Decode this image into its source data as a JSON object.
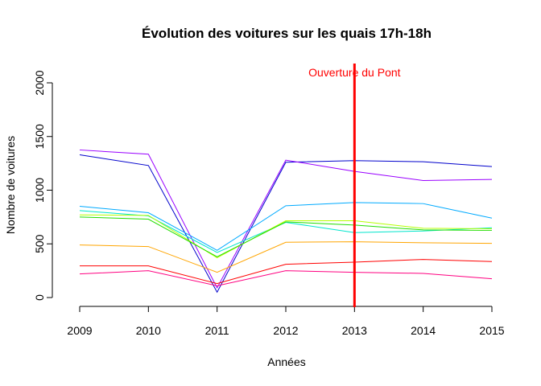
{
  "chart_data": {
    "type": "line",
    "title": "Évolution des voitures sur les quais 17h-18h",
    "xlabel": "Années",
    "ylabel": "Nombre de voitures",
    "x": [
      2009,
      2010,
      2011,
      2012,
      2013,
      2014,
      2015
    ],
    "x_ticks": [
      "2009",
      "2010",
      "2011",
      "2012",
      "2013",
      "2014",
      "2015"
    ],
    "y_ticks": [
      "0",
      "500",
      "1000",
      "1500",
      "2000"
    ],
    "xlim": [
      2009,
      2015
    ],
    "ylim": [
      0,
      2000
    ],
    "grid": false,
    "legend": false,
    "series": [
      {
        "color": "#0000cc",
        "values": [
          1330,
          1230,
          50,
          1260,
          1275,
          1265,
          1220
        ]
      },
      {
        "color": "#9900ff",
        "values": [
          1375,
          1335,
          90,
          1280,
          1175,
          1090,
          1100
        ]
      },
      {
        "color": "#00aaff",
        "values": [
          850,
          790,
          440,
          855,
          885,
          875,
          740
        ]
      },
      {
        "color": "#00e5cc",
        "values": [
          810,
          760,
          420,
          700,
          605,
          620,
          650
        ]
      },
      {
        "color": "#b3ff00",
        "values": [
          770,
          765,
          370,
          715,
          715,
          645,
          640
        ]
      },
      {
        "color": "#22dd00",
        "values": [
          750,
          730,
          380,
          705,
          675,
          630,
          625
        ]
      },
      {
        "color": "#ffa500",
        "values": [
          490,
          475,
          235,
          515,
          520,
          510,
          505
        ]
      },
      {
        "color": "#ff0000",
        "values": [
          295,
          295,
          130,
          310,
          330,
          355,
          335
        ]
      },
      {
        "color": "#ff0080",
        "values": [
          220,
          250,
          110,
          250,
          235,
          225,
          175
        ]
      }
    ],
    "annotation": {
      "x": 2013,
      "text": "Ouverture du Pont",
      "color": "#ff0000"
    }
  }
}
